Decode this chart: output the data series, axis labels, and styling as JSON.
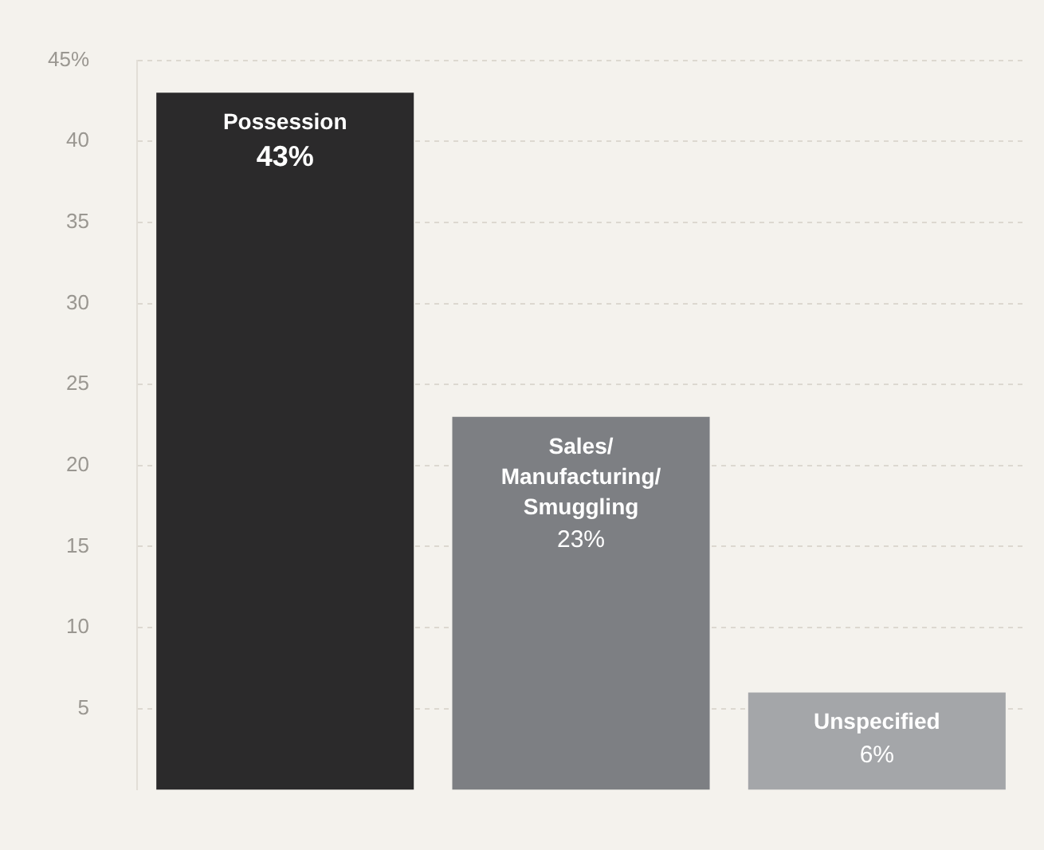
{
  "chart_data": {
    "type": "bar",
    "categories": [
      "Possession",
      "Sales/Manufacturing/Smuggling",
      "Unspecified"
    ],
    "values": [
      43,
      23,
      6
    ],
    "colors": [
      "#2b2a2b",
      "#7d7f83",
      "#a4a6a9"
    ],
    "value_labels": [
      "43%",
      "23%",
      "6%"
    ],
    "ylim": [
      0,
      45
    ],
    "yticks": [
      {
        "value": 5,
        "label": "5"
      },
      10,
      15,
      20,
      25,
      30,
      35,
      40,
      {
        "value": 45,
        "label": "45%"
      }
    ],
    "grid": "y"
  }
}
